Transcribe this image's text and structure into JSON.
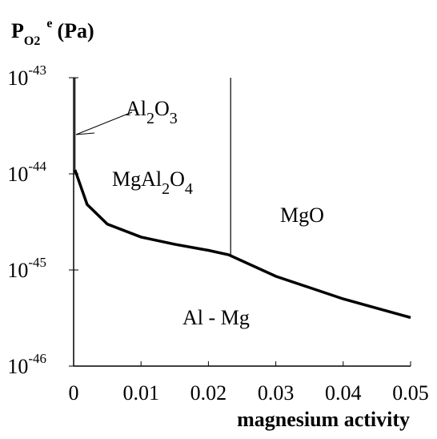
{
  "chart_data": {
    "type": "line",
    "y_label": {
      "base": "P",
      "subscript": "O2",
      "superscript": "e",
      "unit": "(Pa)"
    },
    "x_label": "magnesium activity",
    "x": [
      0.0002,
      0.002,
      0.005,
      0.01,
      0.015,
      0.02,
      0.023,
      0.03,
      0.04,
      0.05
    ],
    "series": [
      {
        "color": "#000000",
        "values": [
          1.1e-44,
          4.8e-45,
          3e-45,
          2.2e-45,
          1.85e-45,
          1.6e-45,
          1.44e-45,
          8.6e-46,
          5e-46,
          3.2e-46
        ]
      }
    ],
    "boundaries": [
      {
        "x": [
          0.0002,
          0.0002
        ],
        "values": [
          1e-43,
          1.1e-44
        ]
      },
      {
        "x": [
          0.0233,
          0.0233
        ],
        "values": [
          1e-43,
          1.42e-45
        ]
      }
    ],
    "annotations": [
      "Al2O3",
      "MgAl2O4",
      "MgO",
      "Al - Mg"
    ],
    "xlim": [
      0,
      0.05
    ],
    "xticks": [
      0,
      0.01,
      0.02,
      0.03,
      0.04,
      0.05
    ],
    "ylim": [
      1e-46,
      1e-43
    ],
    "log_y": true,
    "yticks": [
      {
        "value": 1e-43,
        "label": "10-43"
      },
      {
        "value": 1e-44,
        "label": "10-44"
      },
      {
        "value": 1e-45,
        "label": "10-45"
      },
      {
        "value": 1e-46,
        "label": "10-46"
      }
    ]
  }
}
